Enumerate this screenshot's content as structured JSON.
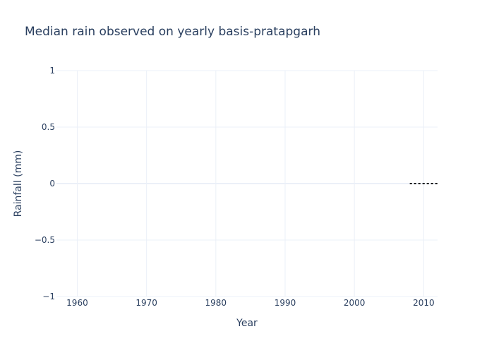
{
  "chart_data": {
    "type": "line",
    "title": "Median rain observed on yearly basis-pratapgarh",
    "xlabel": "Year",
    "ylabel": "Rainfall (mm)",
    "xlim": [
      1957,
      2012
    ],
    "ylim": [
      -1,
      1
    ],
    "x_ticks": [
      1960,
      1970,
      1980,
      1990,
      2000,
      2010
    ],
    "y_ticks": [
      1,
      0.5,
      0,
      -0.5,
      -1
    ],
    "y_tick_labels": [
      "1",
      "0.5",
      "0",
      "−0.5",
      "−1"
    ],
    "grid": true,
    "series": [
      {
        "x": [
          2008,
          2009,
          2010,
          2011,
          2012
        ],
        "y": [
          0,
          0,
          0,
          0,
          0
        ],
        "color": "#000000",
        "dash": "dot"
      }
    ]
  }
}
